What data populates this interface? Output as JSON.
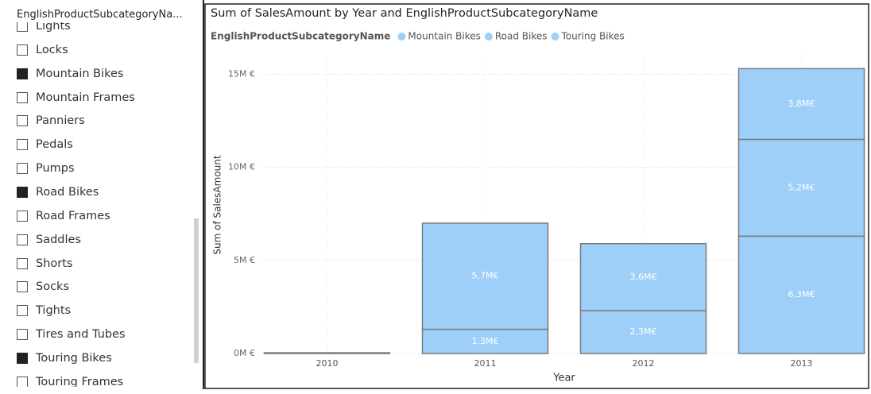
{
  "slicer": {
    "title": "EnglishProductSubcategoryNa...",
    "items": [
      {
        "label": "Lights",
        "checked": false
      },
      {
        "label": "Locks",
        "checked": false
      },
      {
        "label": "Mountain Bikes",
        "checked": true
      },
      {
        "label": "Mountain Frames",
        "checked": false
      },
      {
        "label": "Panniers",
        "checked": false
      },
      {
        "label": "Pedals",
        "checked": false
      },
      {
        "label": "Pumps",
        "checked": false
      },
      {
        "label": "Road Bikes",
        "checked": true
      },
      {
        "label": "Road Frames",
        "checked": false
      },
      {
        "label": "Saddles",
        "checked": false
      },
      {
        "label": "Shorts",
        "checked": false
      },
      {
        "label": "Socks",
        "checked": false
      },
      {
        "label": "Tights",
        "checked": false
      },
      {
        "label": "Tires and Tubes",
        "checked": false
      },
      {
        "label": "Touring Bikes",
        "checked": true
      },
      {
        "label": "Touring Frames",
        "checked": false
      }
    ]
  },
  "chart_data": {
    "type": "stacked_bar",
    "title": "Sum of SalesAmount by Year and EnglishProductSubcategoryName",
    "legend_title": "EnglishProductSubcategoryName",
    "x_label": "Year",
    "y_label": "Sum of SalesAmount",
    "categories": [
      "2010",
      "2011",
      "2012",
      "2013"
    ],
    "series": [
      {
        "name": "Mountain Bikes",
        "color": "#9ecff8",
        "values": [
          null,
          1300000,
          2300000,
          6300000
        ],
        "value_labels": [
          null,
          "1,3M€",
          "2,3M€",
          "6,3M€"
        ]
      },
      {
        "name": "Road Bikes",
        "color": "#9ecff8",
        "values": [
          40000,
          5700000,
          3600000,
          5200000
        ],
        "value_labels": [
          null,
          "5,7M€",
          "3,6M€",
          "5,2M€"
        ]
      },
      {
        "name": "Touring Bikes",
        "color": "#9ecff8",
        "values": [
          null,
          null,
          null,
          3800000
        ],
        "value_labels": [
          null,
          null,
          null,
          "3,8M€"
        ]
      }
    ],
    "ylim": [
      0,
      16000000
    ],
    "yticks": [
      {
        "value": 0,
        "label": "0M €"
      },
      {
        "value": 5000000,
        "label": "5M €"
      },
      {
        "value": 10000000,
        "label": "10M €"
      },
      {
        "value": 15000000,
        "label": "15M €"
      }
    ],
    "grid": true
  }
}
